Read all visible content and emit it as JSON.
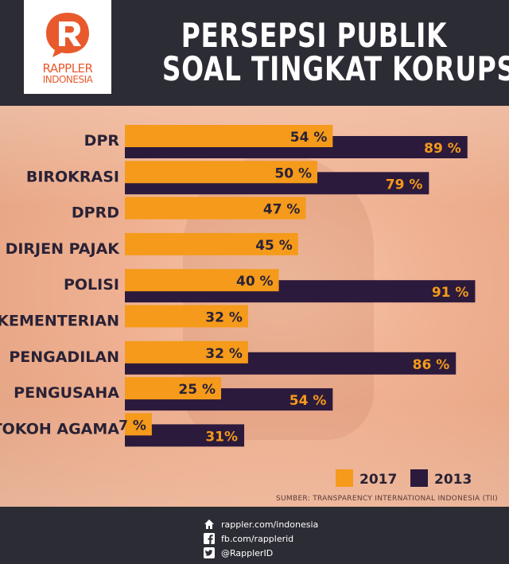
{
  "header": {
    "logo_line1": "RAPPLER",
    "logo_line2": "INDONESIA",
    "title_line1": "PERSEPSI PUBLIK",
    "title_line2": "SOAL TINGKAT KORUPSI"
  },
  "colors": {
    "series_2017": "#f59a1a",
    "series_2013": "#2b1a3c",
    "header_bg": "#2c2c34",
    "logo_accent": "#e85a2c"
  },
  "chart_data": {
    "type": "bar",
    "orientation": "horizontal",
    "title": "PERSEPSI PUBLIK SOAL TINGKAT KORUPSI",
    "categories": [
      "DPR",
      "BIROKRASI",
      "DPRD",
      "DIRJEN PAJAK",
      "POLISI",
      "KEMENTERIAN",
      "PENGADILAN",
      "PENGUSAHA",
      "TOKOH AGAMA"
    ],
    "series": [
      {
        "name": "2017",
        "values": [
          54,
          50,
          47,
          45,
          40,
          32,
          32,
          25,
          7
        ],
        "labels": [
          "54 %",
          "50 %",
          "47 %",
          "45 %",
          "40 %",
          "32 %",
          "32 %",
          "25 %",
          "7 %"
        ]
      },
      {
        "name": "2013",
        "values": [
          89,
          79,
          null,
          null,
          91,
          null,
          86,
          54,
          31
        ],
        "labels": [
          "89 %",
          "79 %",
          "",
          "",
          "91 %",
          "",
          "86 %",
          "54 %",
          "31%"
        ]
      }
    ],
    "unit": "%",
    "xlim": [
      0,
      100
    ],
    "grid": false,
    "legend_position": "bottom-right"
  },
  "source": "SUMBER: TRANSPARENCY INTERNATIONAL INDONESIA (TII)",
  "footer": {
    "website": "rappler.com/indonesia",
    "facebook": "fb.com/rapplerid",
    "twitter": "@RapplerID",
    "icons": [
      "home-icon",
      "facebook-icon",
      "twitter-icon"
    ]
  }
}
